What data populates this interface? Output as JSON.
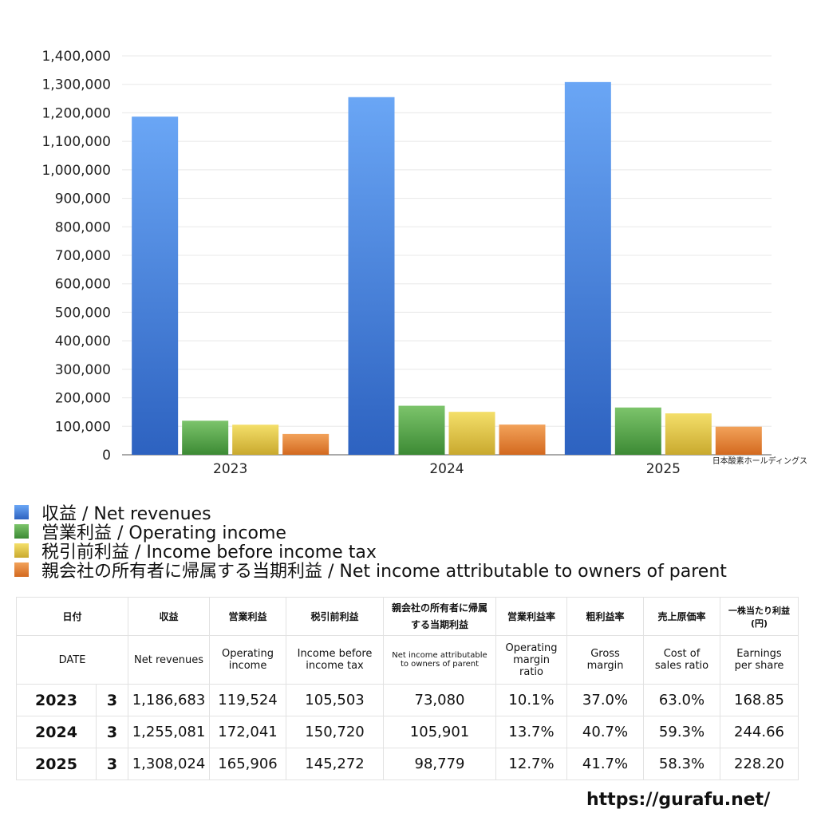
{
  "chart_data": {
    "type": "bar",
    "categories": [
      "2023",
      "2024",
      "2025"
    ],
    "series": [
      {
        "name": "収益 / Net revenues",
        "values": [
          1186683,
          1255081,
          1308024
        ],
        "color": "#3d7fe0"
      },
      {
        "name": "営業利益 / Operating income",
        "values": [
          119524,
          172041,
          165906
        ],
        "color": "#4fa645"
      },
      {
        "name": "税引前利益 / Income before income tax",
        "values": [
          105503,
          150720,
          145272
        ],
        "color": "#e3c440"
      },
      {
        "name": "親会社の所有者に帰属する当期利益 / Net income attributable to owners of parent",
        "values": [
          73080,
          105901,
          98779
        ],
        "color": "#e5822f"
      }
    ],
    "ylim": [
      0,
      1400000
    ],
    "yticks": [
      "0",
      "100,000",
      "200,000",
      "300,000",
      "400,000",
      "500,000",
      "600,000",
      "700,000",
      "800,000",
      "900,000",
      "1,000,000",
      "1,100,000",
      "1,200,000",
      "1,300,000",
      "1,400,000"
    ],
    "grid": true,
    "legend": "bottom",
    "company": "日本酸素ホールディングス"
  },
  "table": {
    "header_jp": [
      "日付",
      "収益",
      "営業利益",
      "税引前利益",
      "親会社の所有者に帰属する当期利益",
      "営業利益率",
      "粗利益率",
      "売上原価率",
      "一株当たり利益(円)"
    ],
    "header_en": [
      "DATE",
      "Net revenues",
      "Operating income",
      "Income before income tax",
      "Net income attributable to owners of parent",
      "Operating margin ratio",
      "Gross margin",
      "Cost of sales ratio",
      "Earnings per share"
    ],
    "rows": [
      {
        "year": "2023",
        "month": "3",
        "revenues": "1,186,683",
        "operating": "119,524",
        "pretax": "105,503",
        "net": "73,080",
        "op_margin": "10.1%",
        "gross": "37.0%",
        "cost": "63.0%",
        "eps": "168.85"
      },
      {
        "year": "2024",
        "month": "3",
        "revenues": "1,255,081",
        "operating": "172,041",
        "pretax": "150,720",
        "net": "105,901",
        "op_margin": "13.7%",
        "gross": "40.7%",
        "cost": "59.3%",
        "eps": "244.66"
      },
      {
        "year": "2025",
        "month": "3",
        "revenues": "1,308,024",
        "operating": "165,906",
        "pretax": "145,272",
        "net": "98,779",
        "op_margin": "12.7%",
        "gross": "41.7%",
        "cost": "58.3%",
        "eps": "228.20"
      }
    ]
  },
  "site_url": "https://gurafu.net/"
}
